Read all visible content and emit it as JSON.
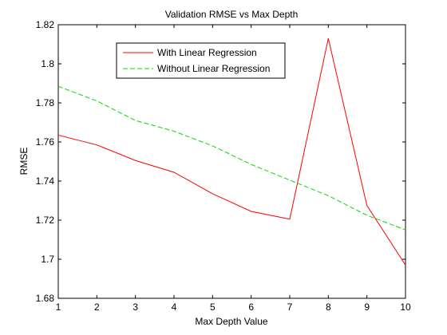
{
  "chart_data": {
    "type": "line",
    "title": "Validation RMSE vs Max Depth",
    "xlabel": "Max Depth Value",
    "ylabel": "RMSE",
    "xlim": [
      1,
      10
    ],
    "ylim": [
      1.68,
      1.82
    ],
    "x_ticks": [
      1,
      2,
      3,
      4,
      5,
      6,
      7,
      8,
      9,
      10
    ],
    "x_tick_labels": [
      "1",
      "2",
      "3",
      "4",
      "5",
      "6",
      "7",
      "8",
      "9",
      "10"
    ],
    "y_ticks": [
      1.68,
      1.7,
      1.72,
      1.74,
      1.76,
      1.78,
      1.8,
      1.82
    ],
    "y_tick_labels": [
      "1.68",
      "1.7",
      "1.72",
      "1.74",
      "1.76",
      "1.78",
      "1.8",
      "1.82"
    ],
    "grid": false,
    "legend_position": "top-left",
    "x": [
      1,
      2,
      3,
      4,
      5,
      6,
      7,
      8,
      9,
      10
    ],
    "series": [
      {
        "name": "With Linear Regression",
        "color": "#ff0000",
        "line_style": "solid",
        "values": [
          1.7635,
          1.7585,
          1.7505,
          1.7445,
          1.7335,
          1.7245,
          1.7205,
          1.813,
          1.7275,
          1.697
        ]
      },
      {
        "name": "Without Linear Regression",
        "color": "#00dd00",
        "line_style": "dashed",
        "values": [
          1.7885,
          1.781,
          1.771,
          1.7655,
          1.758,
          1.7485,
          1.7405,
          1.7325,
          1.7225,
          1.715
        ]
      }
    ]
  }
}
